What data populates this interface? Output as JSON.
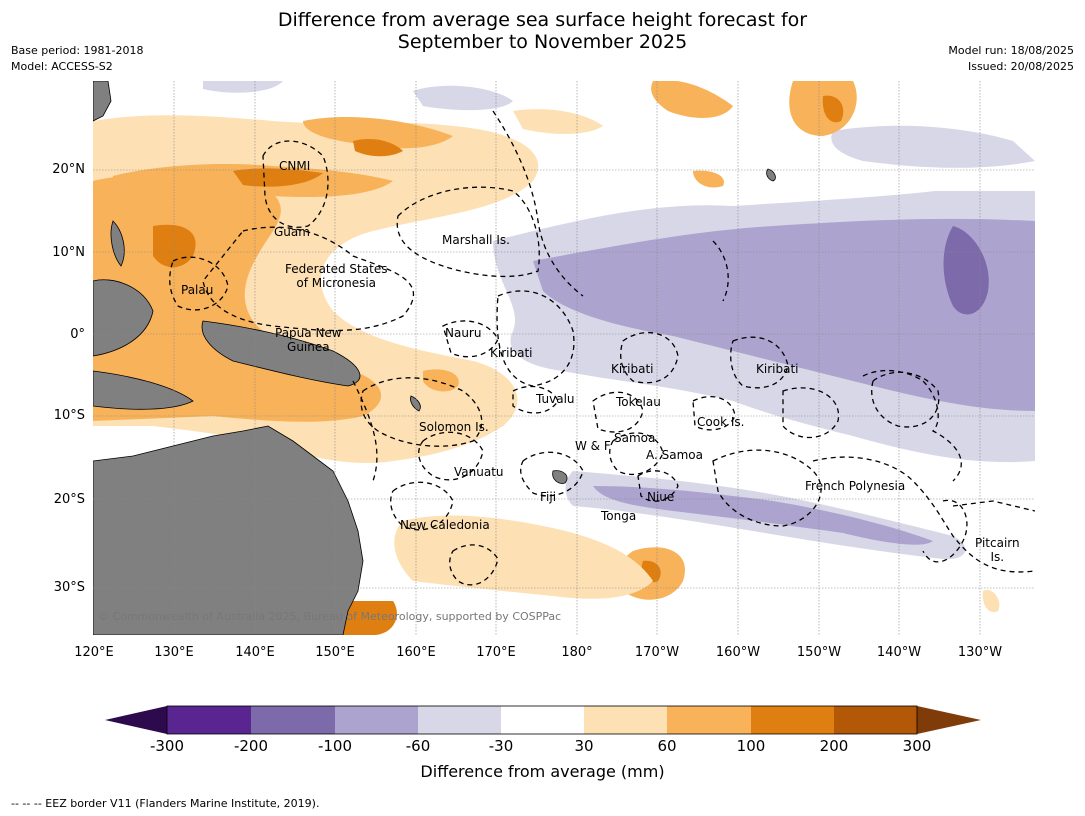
{
  "title_line1": "Difference from average sea surface height forecast for",
  "title_line2": "September to November 2025",
  "base_period": "Base period: 1981-2018",
  "model": "Model: ACCESS-S2",
  "model_run": "Model run: 18/08/2025",
  "issued": "Issued: 20/08/2025",
  "lat_labels": [
    "20°N",
    "10°N",
    "0°",
    "10°S",
    "20°S",
    "30°S"
  ],
  "lon_labels": [
    "120°E",
    "130°E",
    "140°E",
    "150°E",
    "160°E",
    "170°E",
    "180°",
    "170°W",
    "160°W",
    "150°W",
    "140°W",
    "130°W"
  ],
  "places": {
    "cnmi": "CNMI",
    "guam": "Guam",
    "marshall": "Marshall Is.",
    "fsm": "Federated States\nof Micronesia",
    "palau": "Palau",
    "nauru": "Nauru",
    "png": "Papua New\nGuinea",
    "kiribati1": "Kiribati",
    "kiribati2": "Kiribati",
    "kiribati3": "Kiribati",
    "tuvalu": "Tuvalu",
    "tokelau": "Tokelau",
    "cook": "Cook Is.",
    "solomon": "Solomon Is.",
    "samoa": "Samoa",
    "wf": "W & F",
    "asamoa": "A. Samoa",
    "vanuatu": "Vanuatu",
    "fiji": "Fiji",
    "niue": "Niue",
    "frpoly": "French Polynesia",
    "tonga": "Tonga",
    "newcal": "New Caledonia",
    "pitcairn": "Pitcairn\nIs."
  },
  "copyright": "© Commonwealth of Australia 2025, Bureau of Meteorology, supported by COSPPac",
  "colorbar": {
    "ticks": [
      "-300",
      "-200",
      "-100",
      "-60",
      "-30",
      "30",
      "60",
      "100",
      "200",
      "300"
    ],
    "colors": [
      "#2d0a4e",
      "#5a2590",
      "#7c6aab",
      "#aca4cf",
      "#d7d7e8",
      "#ffffff",
      "#fde0b4",
      "#f8b25a",
      "#e07f11",
      "#b35806",
      "#7f3b08"
    ],
    "label": "Difference from average (mm)"
  },
  "footer": "--  --  -- EEZ border V11 (Flanders Marine Institute, 2019)."
}
